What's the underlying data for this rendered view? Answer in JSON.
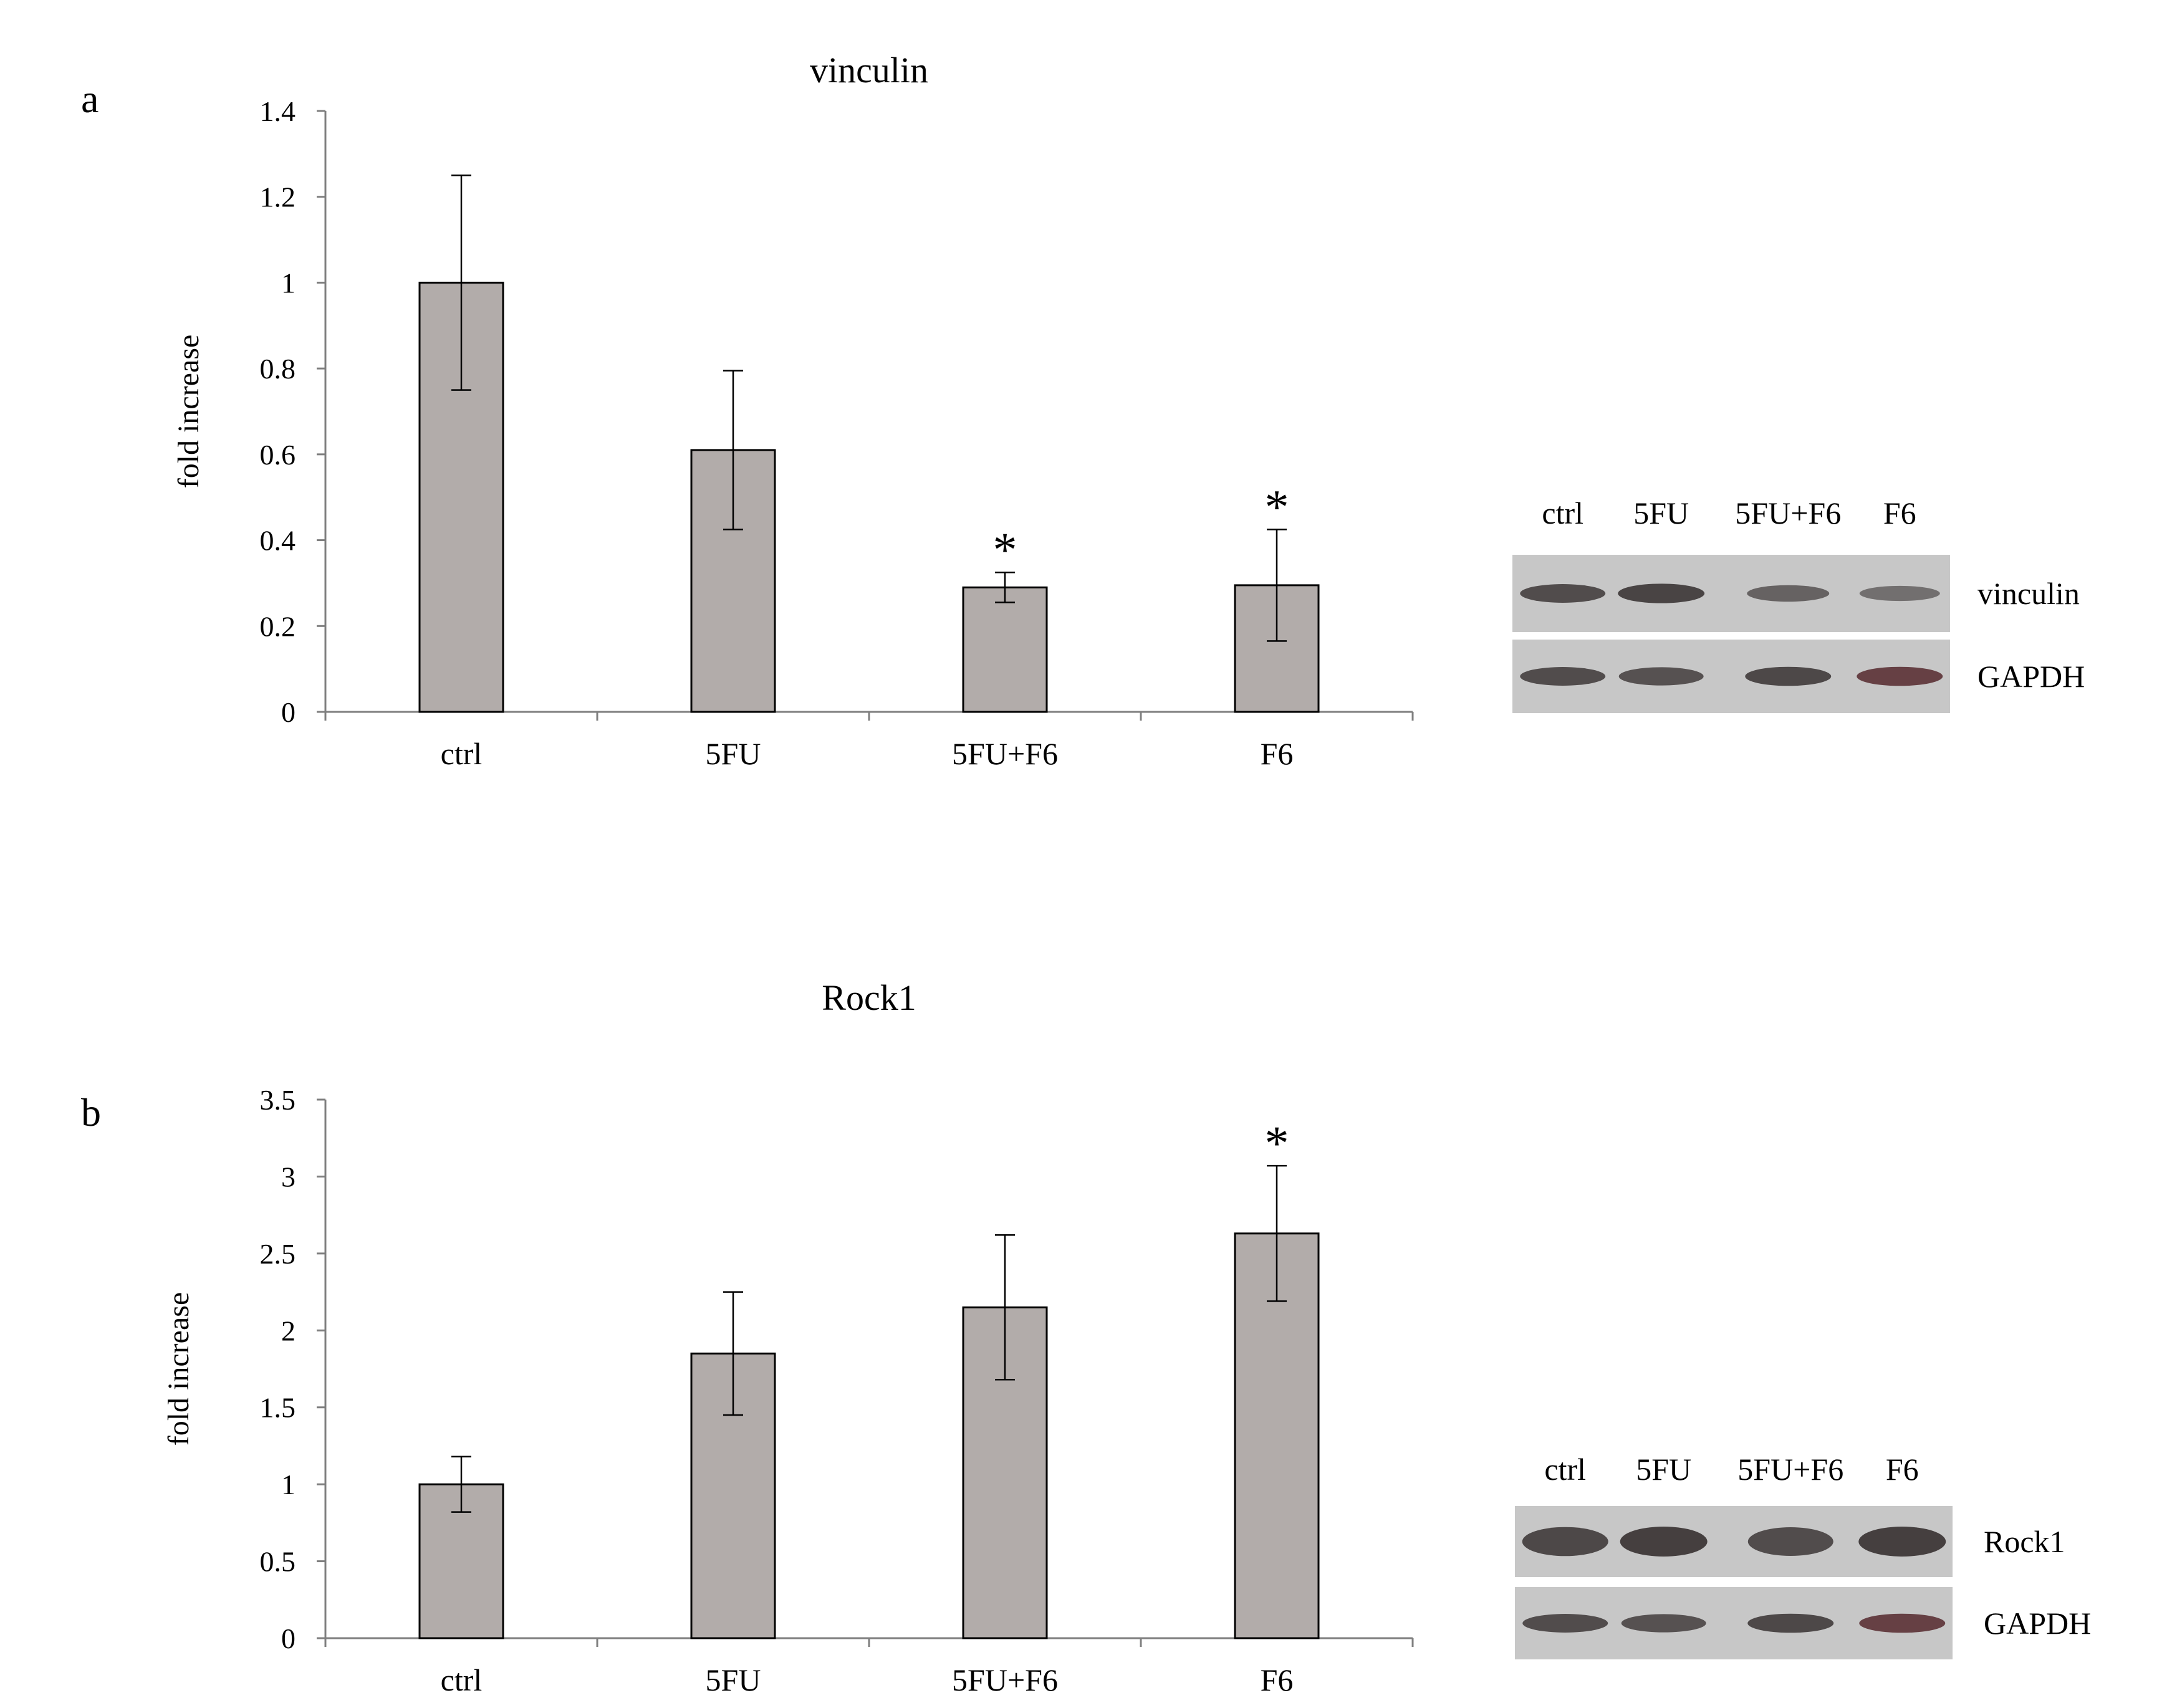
{
  "colors": {
    "bar_fill": "#b2acaa",
    "bar_stroke": "#000000",
    "axis": "#7f7f7f",
    "blot_bg": "#c7c7c7",
    "band": "#3e3838",
    "band_red": "#5a2f34"
  },
  "chart_data": [
    {
      "type": "bar",
      "panel": "a",
      "title": "vinculin",
      "categories": [
        "ctrl",
        "5FU",
        "5FU+F6",
        "F6"
      ],
      "values": [
        1.0,
        0.61,
        0.29,
        0.295
      ],
      "errors": [
        0.25,
        0.185,
        0.035,
        0.13
      ],
      "significant": [
        false,
        false,
        true,
        true
      ],
      "sig_marker": "*",
      "xlabel": "",
      "ylabel": "fold increase",
      "ylim": [
        0,
        1.4
      ],
      "yticks": [
        0,
        0.2,
        0.4,
        0.6,
        0.8,
        1,
        1.2,
        1.4
      ],
      "ytick_labels": [
        "0",
        "0.2",
        "0.4",
        "0.6",
        "0.8",
        "1",
        "1.2",
        "1.4"
      ],
      "grid": false,
      "legend": "none"
    },
    {
      "type": "bar",
      "panel": "b",
      "title": "Rock1",
      "categories": [
        "ctrl",
        "5FU",
        "5FU+F6",
        "F6"
      ],
      "values": [
        1.0,
        1.85,
        2.15,
        2.63
      ],
      "errors": [
        0.18,
        0.4,
        0.47,
        0.44
      ],
      "significant": [
        false,
        false,
        false,
        true
      ],
      "sig_marker": "*",
      "xlabel": "",
      "ylabel": "fold increase",
      "ylim": [
        0,
        3.5
      ],
      "yticks": [
        0,
        0.5,
        1,
        1.5,
        2,
        2.5,
        3,
        3.5
      ],
      "ytick_labels": [
        "0",
        "0.5",
        "1",
        "1.5",
        "2",
        "2.5",
        "3",
        "3.5"
      ],
      "grid": false,
      "legend": "none"
    }
  ],
  "blots": [
    {
      "panel": "a",
      "lanes": [
        "ctrl",
        "5FU",
        "5FU+F6",
        "F6"
      ],
      "rows": [
        {
          "protein": "vinculin",
          "band_intensity": [
            0.85,
            0.95,
            0.6,
            0.45
          ]
        },
        {
          "protein": "GAPDH",
          "band_intensity": [
            0.85,
            0.8,
            0.9,
            0.9
          ]
        }
      ]
    },
    {
      "panel": "b",
      "lanes": [
        "ctrl",
        "5FU",
        "5FU+F6",
        "F6"
      ],
      "rows": [
        {
          "protein": "Rock1",
          "band_intensity": [
            0.9,
            1.0,
            0.85,
            1.0
          ]
        },
        {
          "protein": "GAPDH",
          "band_intensity": [
            0.85,
            0.8,
            0.9,
            0.9
          ]
        }
      ]
    }
  ]
}
